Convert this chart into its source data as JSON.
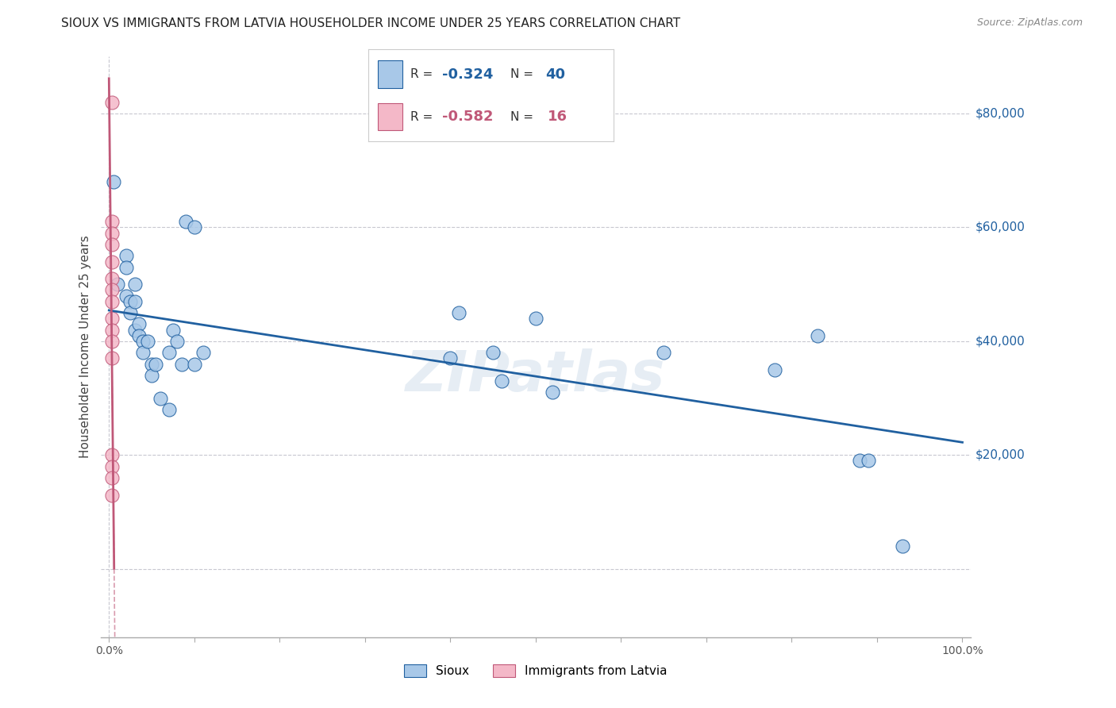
{
  "title": "SIOUX VS IMMIGRANTS FROM LATVIA HOUSEHOLDER INCOME UNDER 25 YEARS CORRELATION CHART",
  "source": "Source: ZipAtlas.com",
  "ylabel": "Householder Income Under 25 years",
  "sioux_color": "#a8c8e8",
  "sioux_color_line": "#2060a0",
  "latvia_color": "#f4b8c8",
  "latvia_color_line": "#c05878",
  "sioux_R": -0.324,
  "sioux_N": 40,
  "latvia_R": -0.582,
  "latvia_N": 16,
  "background_color": "#ffffff",
  "grid_color": "#c8c8d0",
  "watermark": "ZIPatlas",
  "yticks": [
    0,
    20000,
    40000,
    60000,
    80000
  ],
  "ytick_labels": [
    "",
    "$20,000",
    "$40,000",
    "$60,000",
    "$80,000"
  ],
  "xlim": [
    -0.01,
    1.01
  ],
  "ylim": [
    -12000,
    90000
  ],
  "sioux_x": [
    0.005,
    0.01,
    0.02,
    0.02,
    0.02,
    0.025,
    0.025,
    0.03,
    0.03,
    0.03,
    0.035,
    0.035,
    0.04,
    0.04,
    0.045,
    0.05,
    0.05,
    0.055,
    0.06,
    0.07,
    0.07,
    0.075,
    0.08,
    0.085,
    0.09,
    0.1,
    0.1,
    0.11,
    0.4,
    0.41,
    0.45,
    0.46,
    0.5,
    0.52,
    0.65,
    0.78,
    0.83,
    0.88,
    0.89,
    0.93
  ],
  "sioux_y": [
    68000,
    50000,
    55000,
    53000,
    48000,
    47000,
    45000,
    50000,
    47000,
    42000,
    43000,
    41000,
    40000,
    38000,
    40000,
    36000,
    34000,
    36000,
    30000,
    38000,
    28000,
    42000,
    40000,
    36000,
    61000,
    60000,
    36000,
    38000,
    37000,
    45000,
    38000,
    33000,
    44000,
    31000,
    38000,
    35000,
    41000,
    19000,
    19000,
    4000
  ],
  "latvia_x": [
    0.003,
    0.003,
    0.003,
    0.003,
    0.003,
    0.003,
    0.003,
    0.003,
    0.003,
    0.003,
    0.003,
    0.003,
    0.003,
    0.003,
    0.003,
    0.003
  ],
  "latvia_y": [
    82000,
    61000,
    59000,
    57000,
    54000,
    51000,
    49000,
    47000,
    44000,
    42000,
    40000,
    37000,
    20000,
    18000,
    16000,
    13000
  ],
  "xtick_positions": [
    0.0,
    0.1,
    0.2,
    0.3,
    0.4,
    0.5,
    0.6,
    0.7,
    0.8,
    0.9,
    1.0
  ]
}
